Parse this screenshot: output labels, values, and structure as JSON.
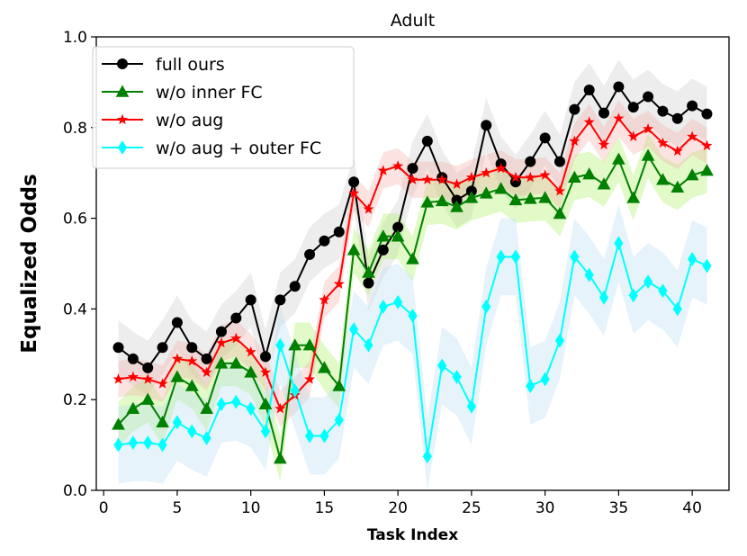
{
  "chart_data": {
    "type": "line",
    "title": "Adult",
    "xlabel": "Task Index",
    "ylabel": "Equalized Odds",
    "xlim": [
      -0.5,
      42.5
    ],
    "ylim": [
      0,
      1
    ],
    "xticks": [
      0,
      5,
      10,
      15,
      20,
      25,
      30,
      35,
      40
    ],
    "yticks": [
      0.0,
      0.2,
      0.4,
      0.6,
      0.8,
      1.0
    ],
    "xtick_labels": [
      "0",
      "5",
      "10",
      "15",
      "20",
      "25",
      "30",
      "35",
      "40"
    ],
    "ytick_labels": [
      "0.0",
      "0.2",
      "0.4",
      "0.6",
      "0.8",
      "1.0"
    ],
    "grid": false,
    "legend_position": "top-left",
    "x": [
      1,
      2,
      3,
      4,
      5,
      6,
      7,
      8,
      9,
      10,
      11,
      12,
      13,
      14,
      15,
      16,
      17,
      18,
      19,
      20,
      21,
      22,
      23,
      24,
      25,
      26,
      27,
      28,
      29,
      30,
      31,
      32,
      33,
      34,
      35,
      36,
      37,
      38,
      39,
      40,
      41
    ],
    "series": [
      {
        "name": "full ours",
        "color": "#000000",
        "band_color": "#cccccc",
        "band_halfwidth": 0.06,
        "marker": "circle",
        "values": [
          0.315,
          0.29,
          0.27,
          0.315,
          0.37,
          0.315,
          0.29,
          0.35,
          0.38,
          0.42,
          0.295,
          0.42,
          0.45,
          0.52,
          0.55,
          0.57,
          0.68,
          0.457,
          0.53,
          0.58,
          0.71,
          0.77,
          0.69,
          0.64,
          0.66,
          0.805,
          0.72,
          0.68,
          0.725,
          0.777,
          0.725,
          0.84,
          0.883,
          0.832,
          0.89,
          0.845,
          0.868,
          0.836,
          0.82,
          0.848,
          0.83
        ]
      },
      {
        "name": "w/o inner FC",
        "color": "#008000",
        "band_color": "#a8f060",
        "band_halfwidth": 0.05,
        "marker": "triangle",
        "values": [
          0.145,
          0.18,
          0.2,
          0.15,
          0.25,
          0.23,
          0.18,
          0.28,
          0.28,
          0.26,
          0.19,
          0.07,
          0.32,
          0.32,
          0.27,
          0.23,
          0.53,
          0.48,
          0.56,
          0.56,
          0.51,
          0.635,
          0.638,
          0.625,
          0.645,
          0.655,
          0.665,
          0.64,
          0.643,
          0.645,
          0.61,
          0.69,
          0.697,
          0.675,
          0.73,
          0.645,
          0.738,
          0.685,
          0.668,
          0.695,
          0.705
        ]
      },
      {
        "name": "w/o aug",
        "color": "#ff0000",
        "band_color": "#f4b0a8",
        "band_halfwidth": 0.04,
        "marker": "star",
        "values": [
          0.245,
          0.25,
          0.245,
          0.235,
          0.29,
          0.285,
          0.26,
          0.325,
          0.335,
          0.305,
          0.26,
          0.18,
          0.21,
          0.245,
          0.42,
          0.455,
          0.655,
          0.62,
          0.705,
          0.715,
          0.685,
          0.685,
          0.685,
          0.675,
          0.69,
          0.7,
          0.71,
          0.69,
          0.69,
          0.695,
          0.66,
          0.77,
          0.812,
          0.762,
          0.82,
          0.78,
          0.797,
          0.766,
          0.748,
          0.78,
          0.76
        ]
      },
      {
        "name": "w/o aug + outer FC",
        "color": "#00ffff",
        "band_color": "#b8dcf0",
        "band_halfwidth": 0.085,
        "marker": "diamond",
        "values": [
          0.1,
          0.105,
          0.105,
          0.1,
          0.15,
          0.13,
          0.115,
          0.19,
          0.195,
          0.18,
          0.13,
          0.32,
          0.22,
          0.12,
          0.12,
          0.155,
          0.355,
          0.32,
          0.405,
          0.415,
          0.385,
          0.075,
          0.275,
          0.25,
          0.185,
          0.405,
          0.515,
          0.515,
          0.23,
          0.245,
          0.33,
          0.515,
          0.475,
          0.425,
          0.545,
          0.43,
          0.46,
          0.44,
          0.4,
          0.51,
          0.495
        ]
      }
    ]
  }
}
